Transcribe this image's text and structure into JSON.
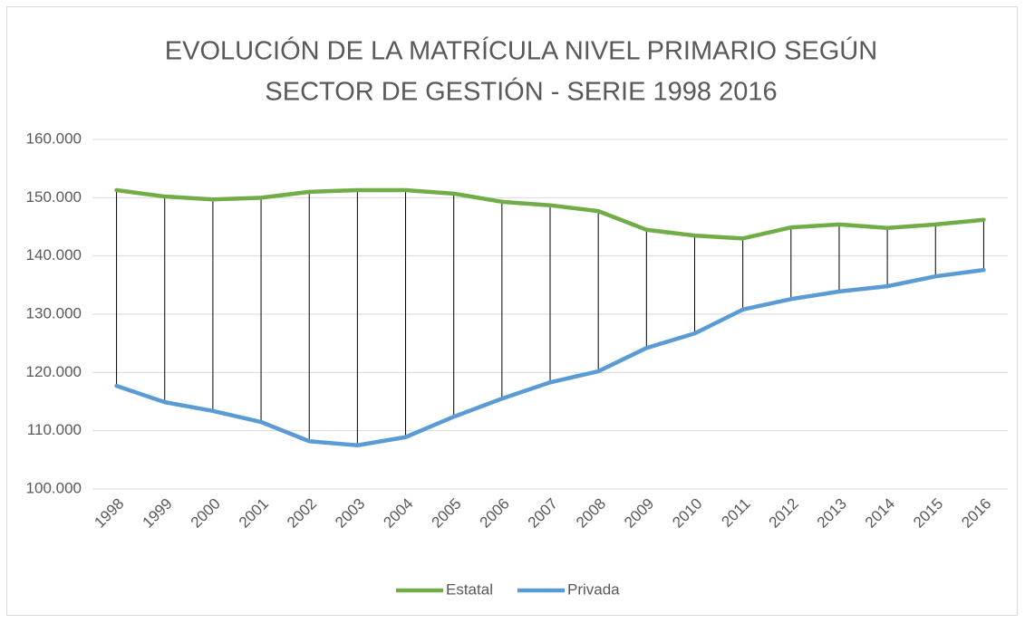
{
  "chart_data": {
    "type": "line",
    "title": "EVOLUCIÓN DE LA MATRÍCULA NIVEL PRIMARIO SEGÚN",
    "subtitle": "SECTOR DE GESTIÓN - SERIE 1998 2016",
    "categories": [
      "1998",
      "1999",
      "2000",
      "2001",
      "2002",
      "2003",
      "2004",
      "2005",
      "2006",
      "2007",
      "2008",
      "2009",
      "2010",
      "2011",
      "2012",
      "2013",
      "2014",
      "2015",
      "2016"
    ],
    "series": [
      {
        "name": "Estatal",
        "color": "#70ad47",
        "values": [
          151300,
          150200,
          149700,
          150000,
          151000,
          151300,
          151300,
          150700,
          149300,
          148700,
          147700,
          144500,
          143500,
          143000,
          144900,
          145400,
          144800,
          145400,
          146200
        ]
      },
      {
        "name": "Privada",
        "color": "#5b9bd5",
        "values": [
          117700,
          114900,
          113400,
          111500,
          108200,
          107500,
          108900,
          112400,
          115500,
          118300,
          120200,
          124200,
          126700,
          130800,
          132600,
          133900,
          134800,
          136500,
          137600
        ]
      }
    ],
    "ylim": [
      100000,
      160000
    ],
    "yticks": [
      {
        "value": 100000,
        "label": "100.000"
      },
      {
        "value": 110000,
        "label": "110.000"
      },
      {
        "value": 120000,
        "label": "120.000"
      },
      {
        "value": 130000,
        "label": "130.000"
      },
      {
        "value": 140000,
        "label": "140.000"
      },
      {
        "value": 150000,
        "label": "150.000"
      },
      {
        "value": 160000,
        "label": "160.000"
      }
    ],
    "grid": true,
    "high_low_lines": true,
    "legend": "bottom"
  }
}
